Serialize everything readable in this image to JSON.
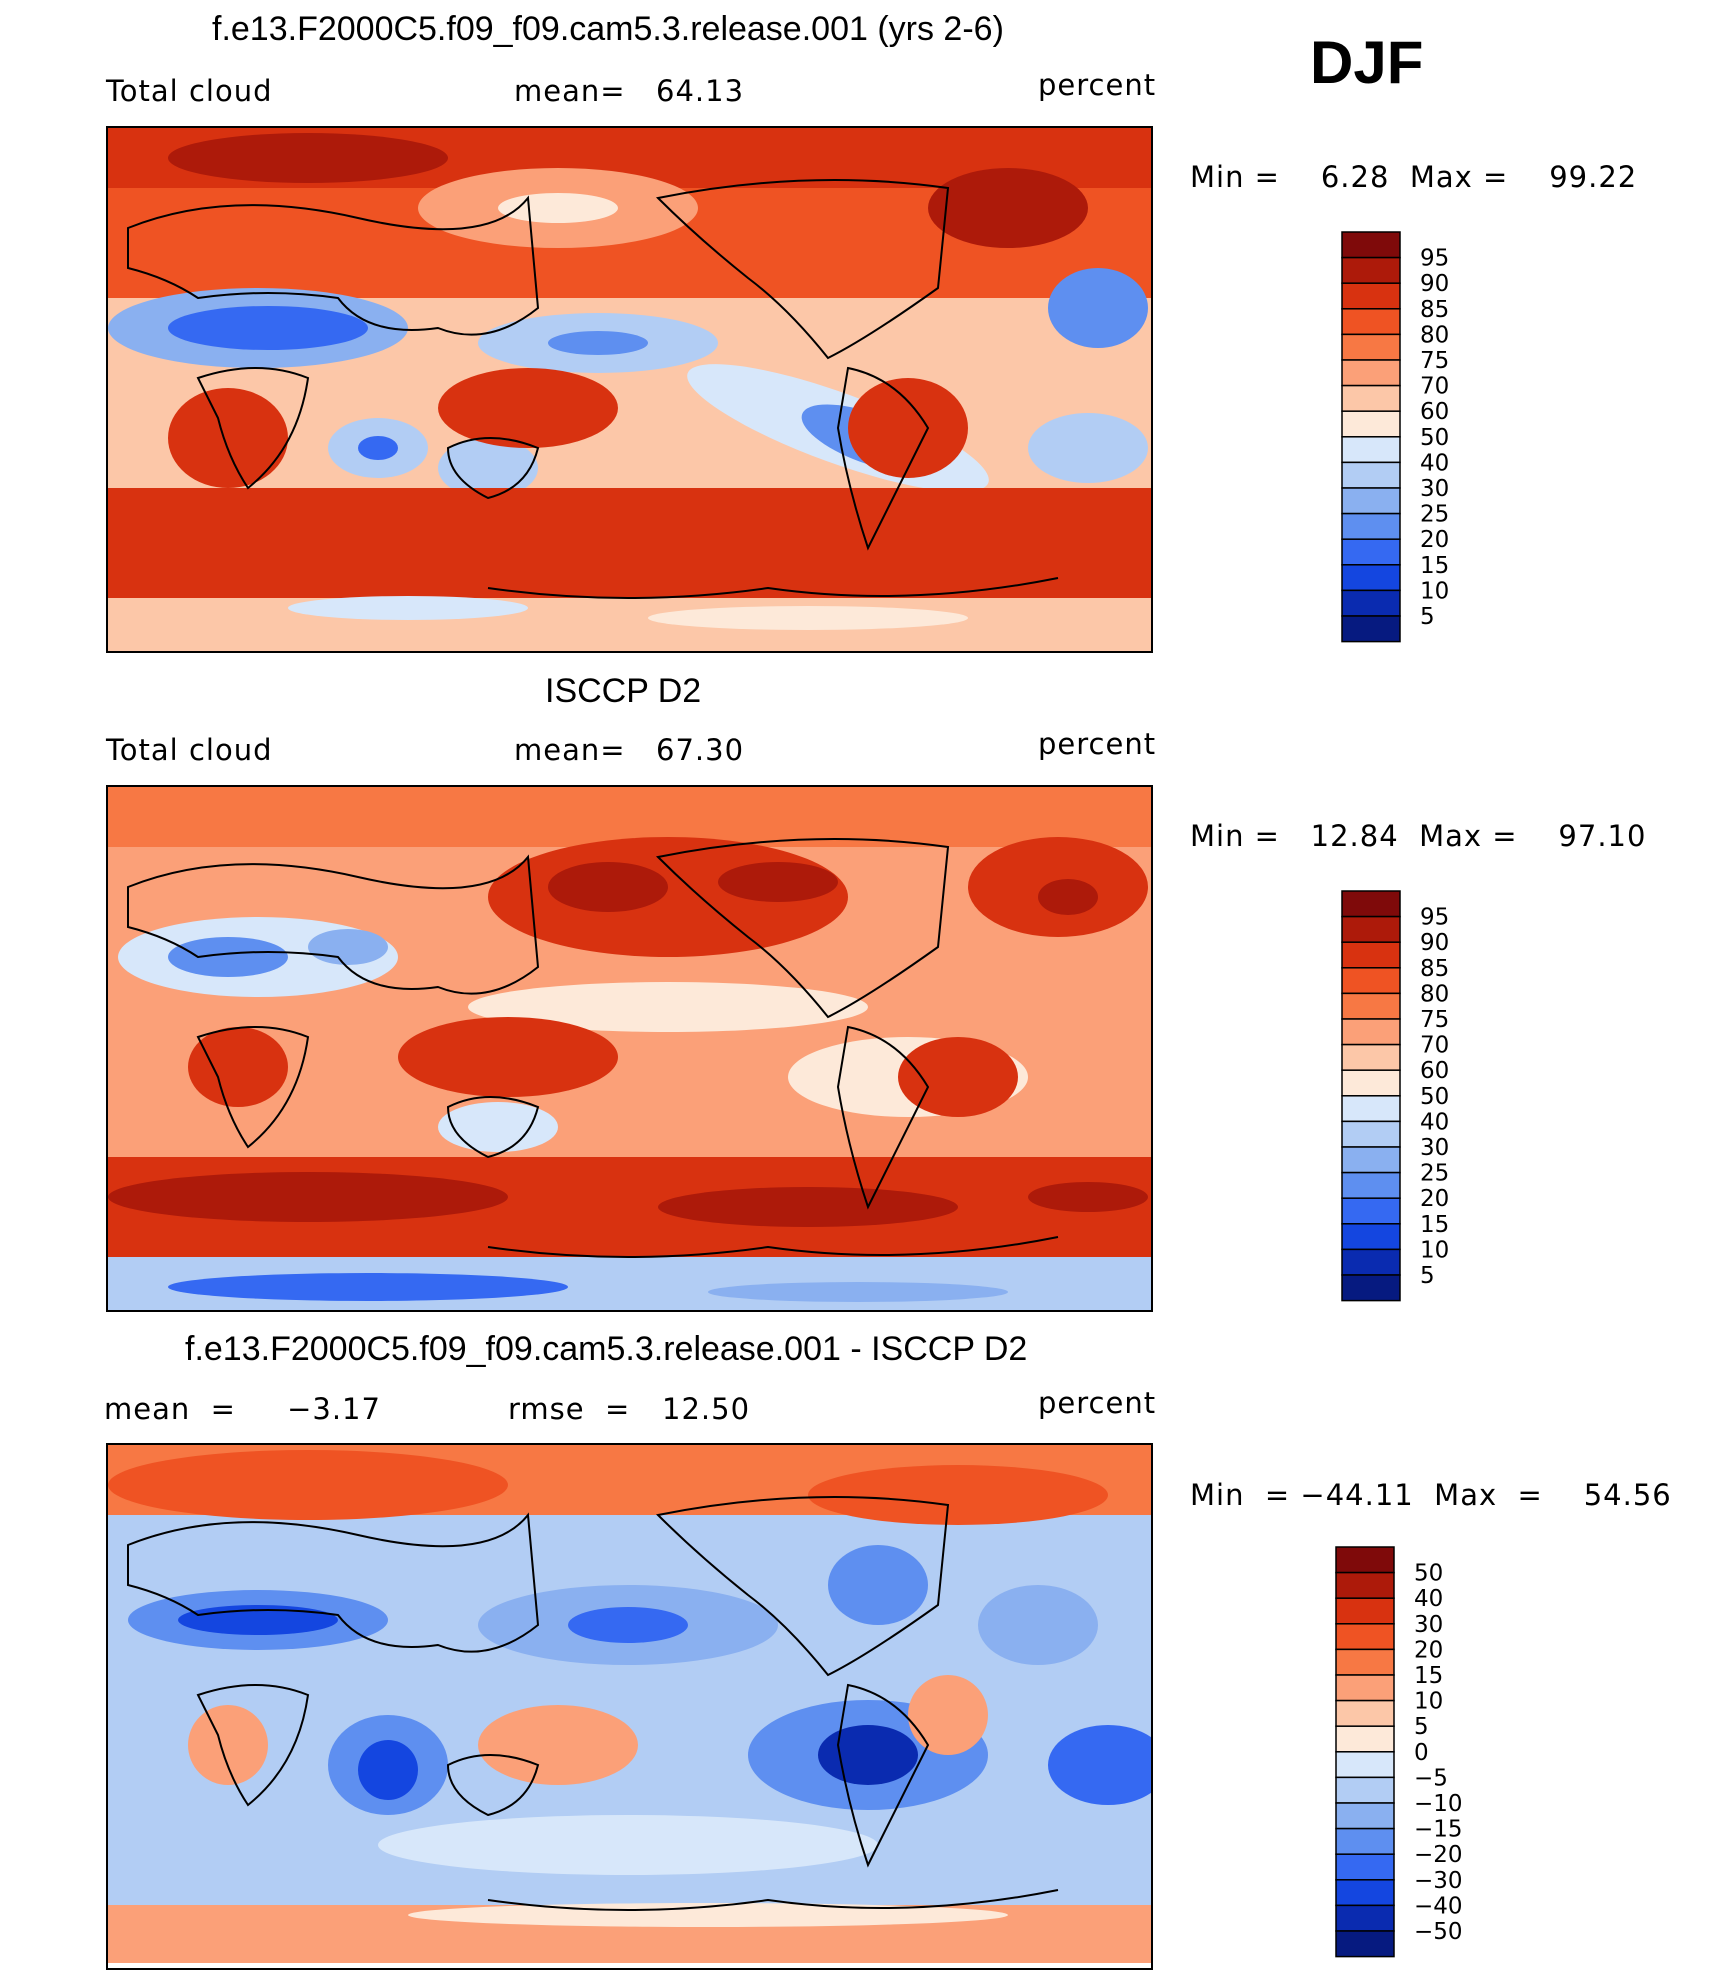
{
  "season": "DJF",
  "panels": [
    {
      "title": "f.e13.F2000C5.f09_f09.cam5.3.release.001 (yrs 2-6)",
      "left_label": "Total cloud",
      "mid_label": "mean=",
      "mid_value": "64.13",
      "right_label": "percent",
      "minmax": "Min =    6.28  Max =    99.22",
      "colorbar_labels": [
        "95",
        "90",
        "85",
        "80",
        "75",
        "70",
        "60",
        "50",
        "40",
        "30",
        "25",
        "20",
        "15",
        "10",
        "5"
      ],
      "colors": [
        "#7f0a0a",
        "#ad1a0a",
        "#d83210",
        "#ef5323",
        "#f77844",
        "#fba078",
        "#fcc7a8",
        "#fde9d9",
        "#d7e7fa",
        "#b2cdf4",
        "#8ab0f0",
        "#5e8ff0",
        "#3569f2",
        "#1446e0",
        "#0a2bb0",
        "#061a80"
      ]
    },
    {
      "title": "ISCCP D2",
      "left_label": "Total cloud",
      "mid_label": "mean=",
      "mid_value": "67.30",
      "right_label": "percent",
      "minmax": "Min =   12.84  Max =    97.10",
      "colorbar_labels": [
        "95",
        "90",
        "85",
        "80",
        "75",
        "70",
        "60",
        "50",
        "40",
        "30",
        "25",
        "20",
        "15",
        "10",
        "5"
      ],
      "colors": [
        "#7f0a0a",
        "#ad1a0a",
        "#d83210",
        "#ef5323",
        "#f77844",
        "#fba078",
        "#fcc7a8",
        "#fde9d9",
        "#d7e7fa",
        "#b2cdf4",
        "#8ab0f0",
        "#5e8ff0",
        "#3569f2",
        "#1446e0",
        "#0a2bb0",
        "#061a80"
      ]
    },
    {
      "title": "f.e13.F2000C5.f09_f09.cam5.3.release.001 - ISCCP D2",
      "left_label": "mean  =     −3.17",
      "mid_label": "rmse  =",
      "mid_value": "12.50",
      "right_label": "percent",
      "minmax": "Min  = −44.11  Max  =    54.56",
      "colorbar_labels": [
        "50",
        "40",
        "30",
        "20",
        "15",
        "10",
        "5",
        "0",
        "−5",
        "−10",
        "−15",
        "−20",
        "−30",
        "−40",
        "−50"
      ],
      "colors": [
        "#7f0a0a",
        "#ad1a0a",
        "#d83210",
        "#ef5323",
        "#f77844",
        "#fba078",
        "#fcc7a8",
        "#fde9d9",
        "#d7e7fa",
        "#b2cdf4",
        "#8ab0f0",
        "#5e8ff0",
        "#3569f2",
        "#1446e0",
        "#0a2bb0",
        "#061a80"
      ]
    }
  ]
}
